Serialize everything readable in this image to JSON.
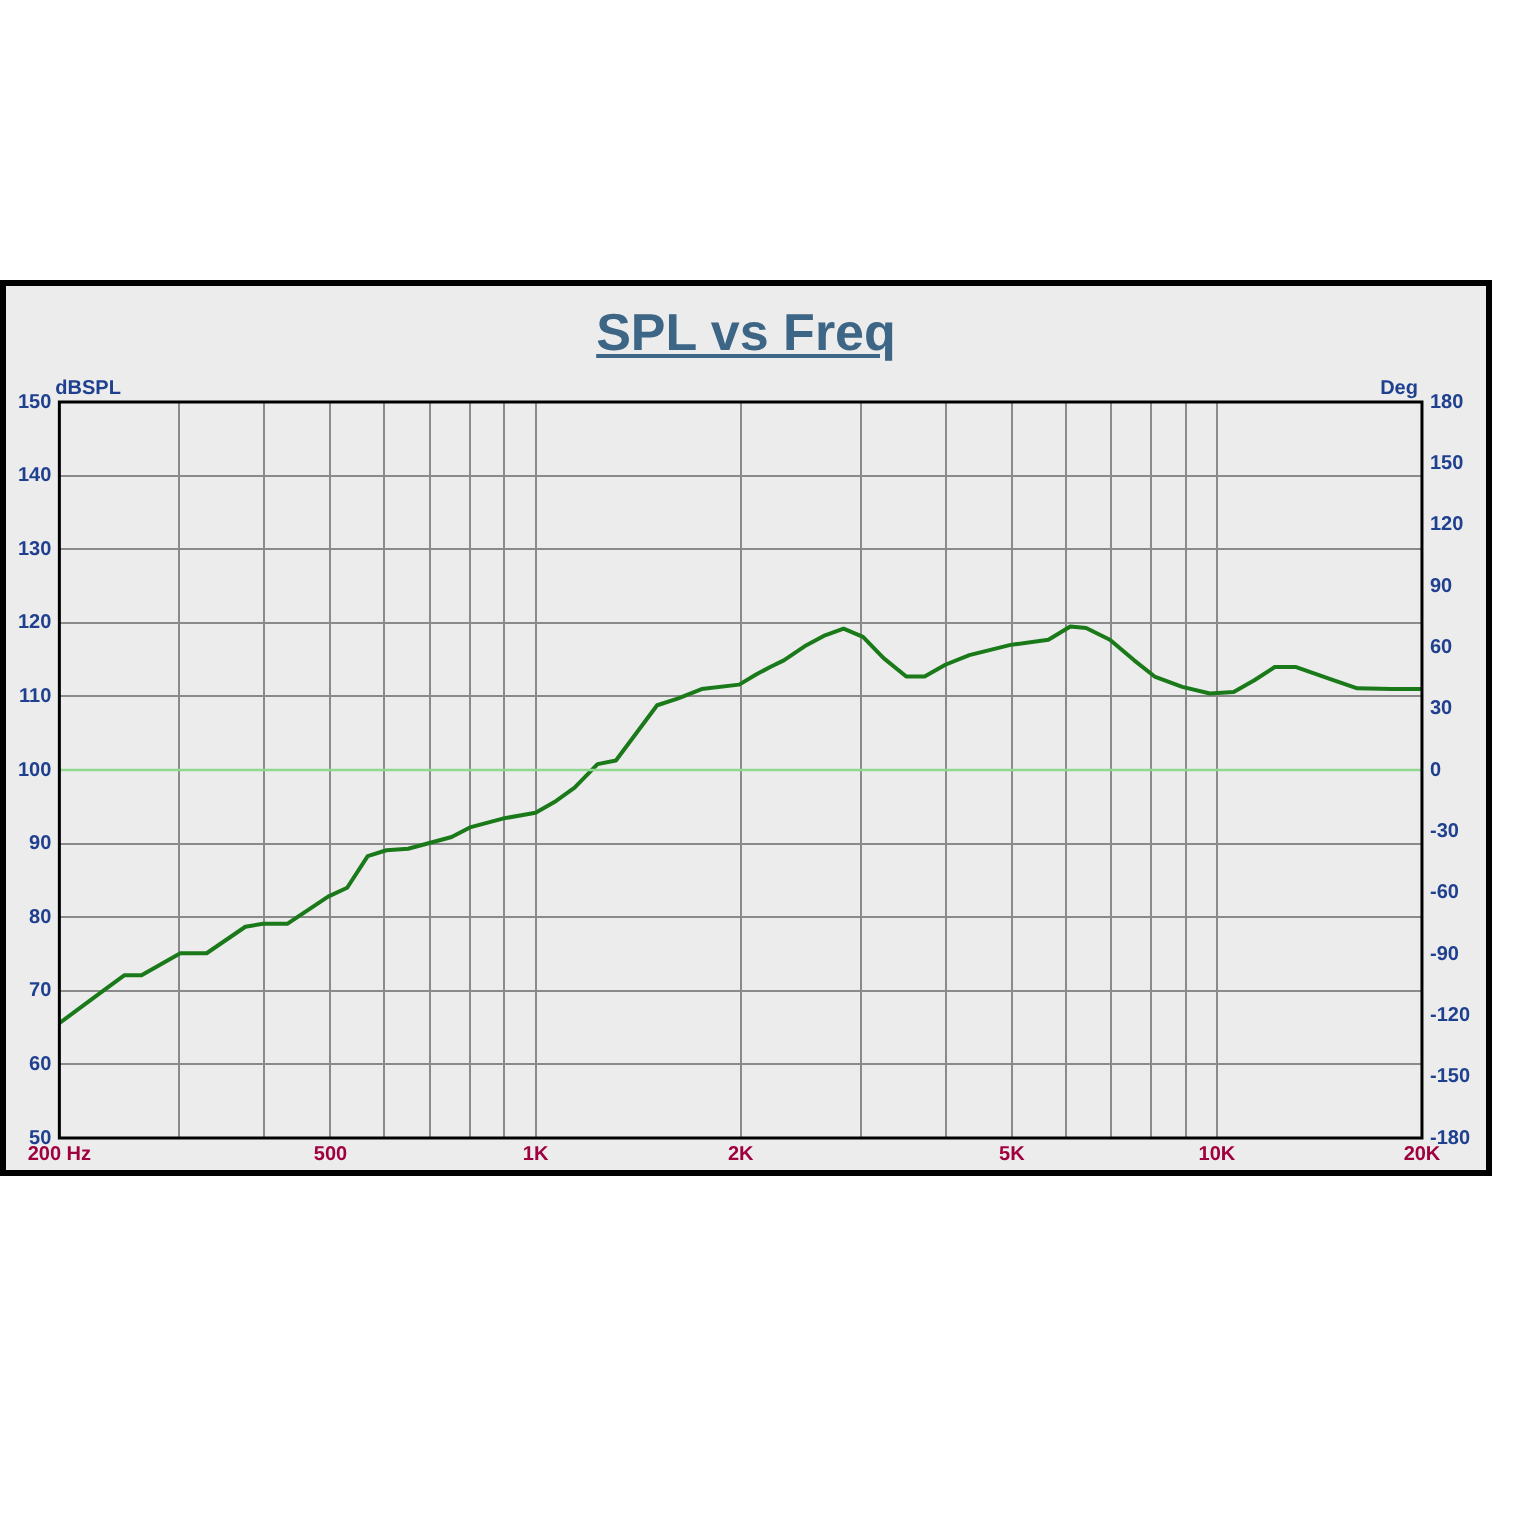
{
  "chart_data": {
    "type": "line",
    "title": "SPL vs Freq",
    "ylabel": "dBSPL",
    "y2label": "Deg",
    "log": "x",
    "grid": true,
    "legend": false,
    "marker": "none",
    "line_style": "solid",
    "xlim": [
      200,
      20000
    ],
    "ylim": [
      50,
      150
    ],
    "y2lim": [
      -180,
      180
    ],
    "xticks": [
      {
        "value": 200,
        "label": "200 Hz"
      },
      {
        "value": 300,
        "label": null
      },
      {
        "value": 400,
        "label": null
      },
      500,
      {
        "value": 600,
        "label": null
      },
      {
        "value": 700,
        "label": null
      },
      {
        "value": 800,
        "label": null
      },
      {
        "value": 900,
        "label": null
      },
      {
        "value": 1000,
        "label": "1K"
      },
      {
        "value": 2000,
        "label": "2K"
      },
      {
        "value": 3000,
        "label": null
      },
      {
        "value": 4000,
        "label": null
      },
      {
        "value": 5000,
        "label": "5K"
      },
      {
        "value": 6000,
        "label": null
      },
      {
        "value": 7000,
        "label": null
      },
      {
        "value": 8000,
        "label": null
      },
      {
        "value": 9000,
        "label": null
      },
      {
        "value": 10000,
        "label": "10K"
      },
      {
        "value": 20000,
        "label": "20K"
      }
    ],
    "yticks": [
      50,
      60,
      70,
      80,
      90,
      100,
      110,
      120,
      130,
      140,
      150
    ],
    "y2ticks": [
      -180,
      -150,
      -120,
      -90,
      -60,
      -30,
      0,
      30,
      60,
      90,
      120,
      150,
      180
    ],
    "ref_lines": [
      {
        "axis": "y2",
        "value": 0,
        "color": "#8fd88f"
      }
    ],
    "series": [
      {
        "color": "#1a7a1a",
        "x": [
          200,
          231,
          249,
          264,
          301,
          329,
          375,
          398,
          432,
          496,
          529,
          567,
          604,
          650,
          753,
          801,
          895,
          1000,
          1072,
          1141,
          1233,
          1312,
          1508,
          1616,
          1753,
          1990,
          2110,
          2210,
          2314,
          2482,
          2660,
          2832,
          3024,
          3242,
          3500,
          3724,
          3994,
          4332,
          4980,
          5659,
          6094,
          6428,
          6966,
          7562,
          8102,
          8896,
          9765,
          10584,
          11350,
          12162,
          13042,
          14820,
          16070,
          18058,
          20000
        ],
        "values": [
          65.6,
          69.9,
          72.1,
          72.1,
          75.1,
          75.1,
          78.7,
          79.1,
          79.1,
          82.8,
          84.0,
          88.3,
          89.1,
          89.3,
          90.9,
          92.2,
          93.4,
          94.2,
          95.8,
          97.6,
          100.8,
          101.3,
          108.8,
          109.7,
          111.0,
          111.6,
          113.0,
          114.0,
          114.9,
          116.8,
          118.3,
          119.2,
          118.1,
          115.2,
          112.7,
          112.7,
          114.3,
          115.6,
          117.0,
          117.7,
          119.5,
          119.3,
          117.7,
          114.9,
          112.7,
          111.3,
          110.4,
          110.6,
          112.2,
          114.0,
          114.0,
          112.2,
          111.1,
          111.0,
          111.0
        ]
      }
    ]
  }
}
